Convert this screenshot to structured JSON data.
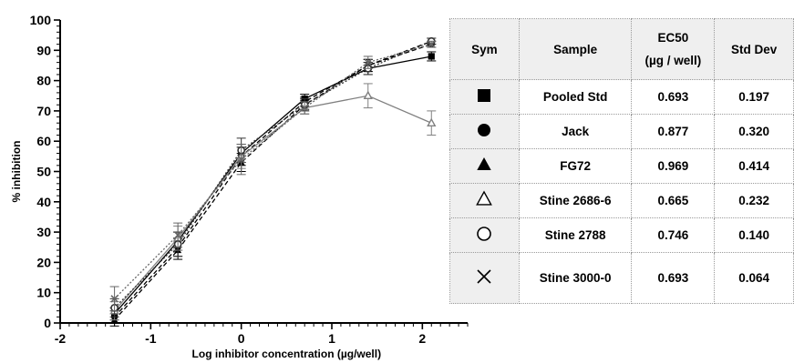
{
  "chart_data": {
    "type": "line",
    "title": "",
    "xlabel": "Log inhibitor concentration (µg/well)",
    "ylabel": "% inhibition",
    "xlim": [
      -2,
      2.5
    ],
    "ylim": [
      0,
      100
    ],
    "x_ticks": [
      -2,
      -1,
      0,
      1,
      2
    ],
    "y_ticks": [
      0,
      10,
      20,
      30,
      40,
      50,
      60,
      70,
      80,
      90,
      100
    ],
    "grid": false,
    "x": [
      -1.4,
      -0.7,
      0,
      0.7,
      1.4,
      2.1
    ],
    "series": [
      {
        "name": "Pooled Std",
        "marker": "square-filled",
        "line": "solid",
        "color": "#000000",
        "values": [
          3,
          27,
          56,
          74,
          84,
          88
        ],
        "errors": [
          2,
          3,
          3,
          1.5,
          2,
          1.5
        ]
      },
      {
        "name": "Jack",
        "marker": "circle-filled",
        "line": "dashed",
        "color": "#000000",
        "values": [
          2,
          25,
          55,
          73,
          85,
          92
        ],
        "errors": [
          2,
          3,
          3,
          1.5,
          2,
          1
        ]
      },
      {
        "name": "FG72",
        "marker": "triangle-filled",
        "line": "dashed",
        "color": "#000000",
        "values": [
          1,
          24,
          53,
          72,
          85,
          93
        ],
        "errors": [
          2,
          3,
          3,
          1.5,
          2,
          1
        ]
      },
      {
        "name": "Stine 2686-6",
        "marker": "triangle-open",
        "line": "solid",
        "color": "#808080",
        "values": [
          4,
          28,
          55,
          71,
          75,
          66
        ],
        "errors": [
          3,
          4,
          4,
          2,
          4,
          4
        ]
      },
      {
        "name": "Stine 2788",
        "marker": "circle-open",
        "line": "dotted",
        "color": "#333333",
        "values": [
          5,
          26,
          57,
          72,
          84,
          93
        ],
        "errors": [
          3,
          4,
          4,
          2,
          2,
          1
        ]
      },
      {
        "name": "Stine 3000-0",
        "marker": "x",
        "line": "dotted",
        "color": "#666666",
        "values": [
          8,
          29,
          54,
          71,
          86,
          92
        ],
        "errors": [
          4,
          4,
          5,
          2,
          2,
          1
        ]
      }
    ]
  },
  "legend_table": {
    "headers": {
      "sym": "Sym",
      "sample": "Sample",
      "ec50": "EC50",
      "ec50_unit": "(µg / well)",
      "std_dev": "Std Dev"
    },
    "rows": [
      {
        "marker": "square-filled",
        "sample": "Pooled Std",
        "ec50": "0.693",
        "std_dev": "0.197"
      },
      {
        "marker": "circle-filled",
        "sample": "Jack",
        "ec50": "0.877",
        "std_dev": "0.320"
      },
      {
        "marker": "triangle-filled",
        "sample": "FG72",
        "ec50": "0.969",
        "std_dev": "0.414"
      },
      {
        "marker": "triangle-open",
        "sample": "Stine 2686-6",
        "ec50": "0.665",
        "std_dev": "0.232"
      },
      {
        "marker": "circle-open",
        "sample": "Stine 2788",
        "ec50": "0.746",
        "std_dev": "0.140"
      },
      {
        "marker": "x",
        "sample": "Stine 3000-0",
        "ec50": "0.693",
        "std_dev": "0.064"
      }
    ]
  }
}
